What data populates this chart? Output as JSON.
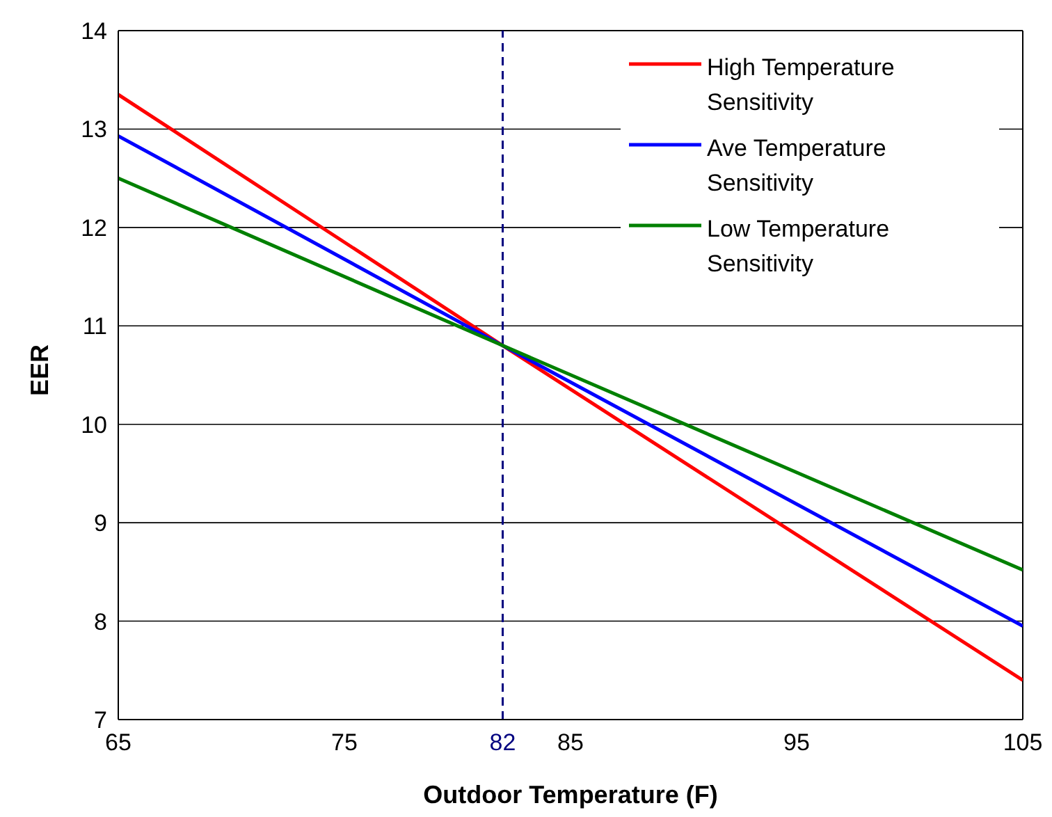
{
  "chart_data": {
    "type": "line",
    "xlabel": "Outdoor Temperature (F)",
    "ylabel": "EER",
    "x": [
      65,
      82,
      105
    ],
    "series": [
      {
        "name": "High Temperature Sensitivity",
        "color": "#ff0000",
        "values": [
          13.35,
          10.8,
          7.4
        ]
      },
      {
        "name": "Ave Temperature Sensitivity",
        "color": "#0000ff",
        "values": [
          12.93,
          10.8,
          7.95
        ]
      },
      {
        "name": "Low Temperature Sensitivity",
        "color": "#008000",
        "values": [
          12.5,
          10.8,
          8.52
        ]
      }
    ],
    "xlim": [
      65,
      105
    ],
    "xticks": [
      65,
      75,
      82,
      85,
      95,
      105
    ],
    "ylim": [
      7,
      14
    ],
    "yticks": [
      7,
      8,
      9,
      10,
      11,
      12,
      13,
      14
    ],
    "grid": "y",
    "legend": "top right",
    "marker": "none",
    "line_style": "solid",
    "ref_lines": [
      {
        "axis": "x",
        "value": 82,
        "color": "#000080",
        "line_style": "dashed"
      }
    ]
  }
}
